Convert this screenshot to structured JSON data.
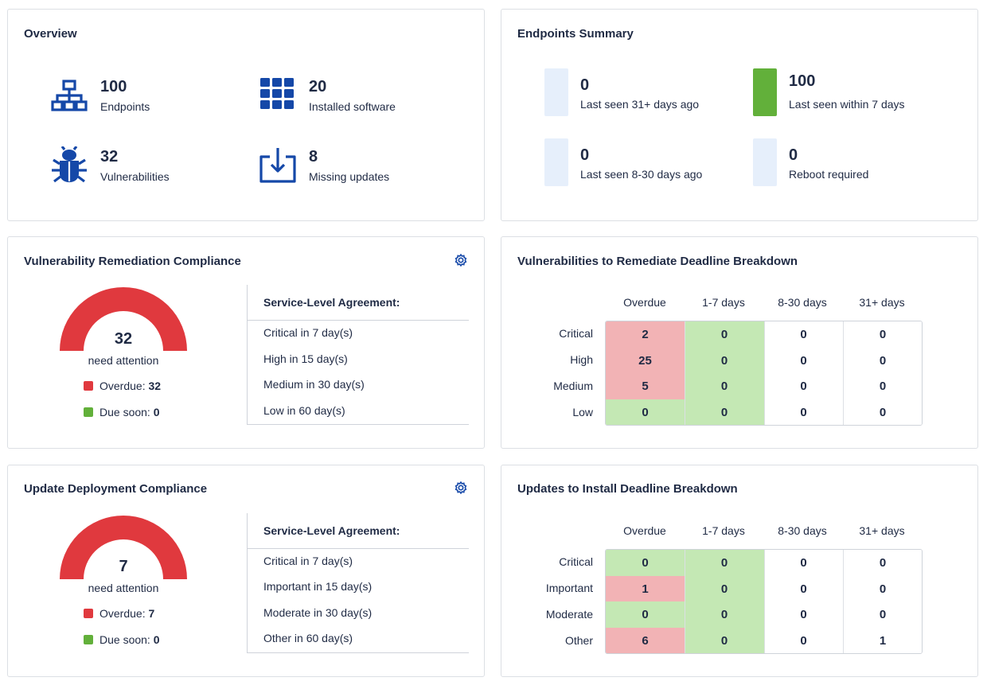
{
  "colors": {
    "icon_blue": "#1548a8",
    "red": "#e0393e",
    "green": "#62b03a",
    "empty_bar": "#e6effb",
    "cell_red": "#f2b3b5",
    "cell_green": "#c4e8b4"
  },
  "overview": {
    "title": "Overview",
    "items": [
      {
        "icon": "network-icon",
        "value": "100",
        "label": "Endpoints"
      },
      {
        "icon": "grid-icon",
        "value": "20",
        "label": "Installed software"
      },
      {
        "icon": "bug-icon",
        "value": "32",
        "label": "Vulnerabilities"
      },
      {
        "icon": "download-icon",
        "value": "8",
        "label": "Missing updates"
      }
    ]
  },
  "endpoints": {
    "title": "Endpoints Summary",
    "items": [
      {
        "value": "0",
        "label": "Last seen 31+ days ago",
        "status": "empty"
      },
      {
        "value": "100",
        "label": "Last seen within 7 days",
        "status": "green"
      },
      {
        "value": "0",
        "label": "Last seen 8-30 days ago",
        "status": "empty"
      },
      {
        "value": "0",
        "label": "Reboot required",
        "status": "empty"
      }
    ]
  },
  "vuln_compliance": {
    "title": "Vulnerability Remediation Compliance",
    "gauge_value": "32",
    "gauge_sub": "need attention",
    "overdue_label": "Overdue:",
    "overdue_value": "32",
    "due_soon_label": "Due soon:",
    "due_soon_value": "0",
    "sla_head": "Service-Level Agreement:",
    "sla_rows": [
      "Critical in 7 day(s)",
      "High in 15 day(s)",
      "Medium in 30 day(s)",
      "Low in 60 day(s)"
    ]
  },
  "update_compliance": {
    "title": "Update Deployment Compliance",
    "gauge_value": "7",
    "gauge_sub": "need attention",
    "overdue_label": "Overdue:",
    "overdue_value": "7",
    "due_soon_label": "Due soon:",
    "due_soon_value": "0",
    "sla_head": "Service-Level Agreement:",
    "sla_rows": [
      "Critical in 7 day(s)",
      "Important in 15 day(s)",
      "Moderate in 30 day(s)",
      "Other in 60 day(s)"
    ]
  },
  "vuln_breakdown": {
    "title": "Vulnerabilities to Remediate Deadline Breakdown",
    "columns": [
      "Overdue",
      "1-7 days",
      "8-30 days",
      "31+ days"
    ],
    "rows": [
      {
        "label": "Critical",
        "values": [
          "2",
          "0",
          "0",
          "0"
        ],
        "tones": [
          "red",
          "green",
          "none",
          "none"
        ]
      },
      {
        "label": "High",
        "values": [
          "25",
          "0",
          "0",
          "0"
        ],
        "tones": [
          "red",
          "green",
          "none",
          "none"
        ]
      },
      {
        "label": "Medium",
        "values": [
          "5",
          "0",
          "0",
          "0"
        ],
        "tones": [
          "red",
          "green",
          "none",
          "none"
        ]
      },
      {
        "label": "Low",
        "values": [
          "0",
          "0",
          "0",
          "0"
        ],
        "tones": [
          "green",
          "green",
          "none",
          "none"
        ]
      }
    ]
  },
  "update_breakdown": {
    "title": "Updates to Install Deadline Breakdown",
    "columns": [
      "Overdue",
      "1-7 days",
      "8-30 days",
      "31+ days"
    ],
    "rows": [
      {
        "label": "Critical",
        "values": [
          "0",
          "0",
          "0",
          "0"
        ],
        "tones": [
          "green",
          "green",
          "none",
          "none"
        ]
      },
      {
        "label": "Important",
        "values": [
          "1",
          "0",
          "0",
          "0"
        ],
        "tones": [
          "red",
          "green",
          "none",
          "none"
        ]
      },
      {
        "label": "Moderate",
        "values": [
          "0",
          "0",
          "0",
          "0"
        ],
        "tones": [
          "green",
          "green",
          "none",
          "none"
        ]
      },
      {
        "label": "Other",
        "values": [
          "6",
          "0",
          "0",
          "1"
        ],
        "tones": [
          "red",
          "green",
          "none",
          "none"
        ]
      }
    ]
  }
}
